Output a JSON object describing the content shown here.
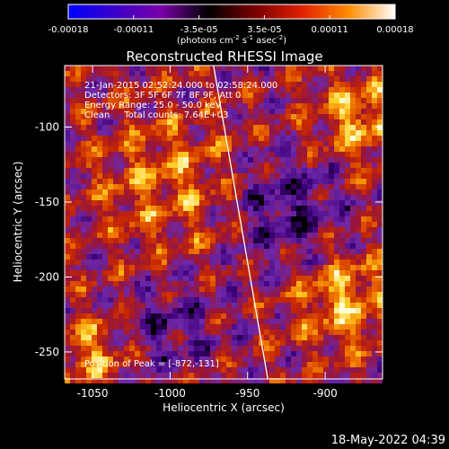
{
  "chart_data": {
    "type": "heatmap",
    "title": "Reconstructed RHESSI Image",
    "xlabel": "Heliocentric X (arcsec)",
    "ylabel": "Heliocentric Y (arcsec)",
    "xlim": [
      -1068,
      -863
    ],
    "ylim": [
      -268,
      -59
    ],
    "xticks": [
      -1050,
      -1000,
      -950,
      -900
    ],
    "xtick_labels": [
      "-1050",
      "-1000",
      "-950",
      "-900"
    ],
    "yticks": [
      -100,
      -150,
      -200,
      -250
    ],
    "ytick_labels": [
      "-100",
      "-150",
      "-200",
      "-250"
    ],
    "colorbar": {
      "ticks": [
        "-0.00018",
        "-0.00011",
        "-3.5e-05",
        "3.5e-05",
        "0.00011",
        "0.00018"
      ],
      "unit_label": "(photons cm",
      "unit_exp1": "-2",
      "unit_mid": " s",
      "unit_exp2": "-1",
      "unit_mid2": " asec",
      "unit_exp3": "-2",
      "unit_end": ")",
      "colors": [
        "#0000ff",
        "#3a00c8",
        "#7a00a8",
        "#000000",
        "#7a0000",
        "#e02000",
        "#ff8c00",
        "#ffffff"
      ]
    },
    "annotations": [
      "21-Jan-2015 02:52:24.000 to 02:58:24.000",
      "Detectors: 3F 5F 6F 7F 8F 9F, Att 0",
      "Energy Range: 25.0 - 50.0 keV",
      "Clean     Total counts: 7.64E+03"
    ],
    "peak_label": "Position of Peak = [-872,-131]",
    "peak": [
      -872,
      -131
    ],
    "limb_line": {
      "x": [
        -972,
        -937
      ],
      "y": [
        -59,
        -268
      ]
    }
  },
  "footer": {
    "timestamp": "18-May-2022 04:39"
  }
}
